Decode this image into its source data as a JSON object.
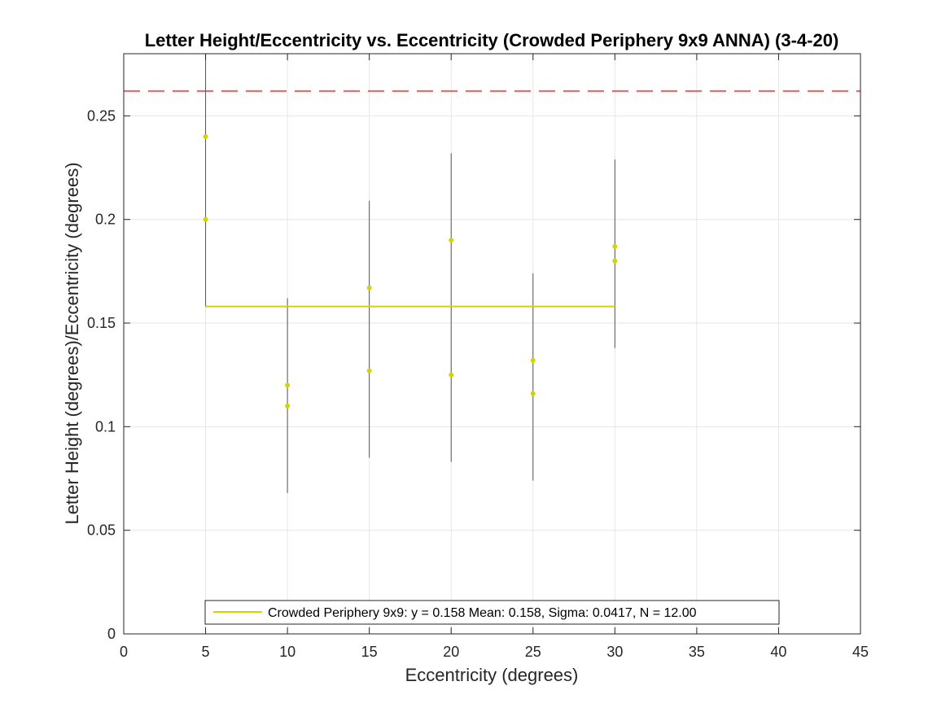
{
  "chart_data": {
    "type": "scatter",
    "title": "Letter Height/Eccentricity vs. Eccentricity (Crowded Periphery 9x9 ANNA) (3-4-20)",
    "xlabel": "Eccentricity (degrees)",
    "ylabel": "Letter Height (degrees)/Eccentricity (degrees)",
    "xlim": [
      0,
      45
    ],
    "ylim": [
      0,
      0.28
    ],
    "xticks": [
      0,
      5,
      10,
      15,
      20,
      25,
      30,
      35,
      40,
      45
    ],
    "xtick_labels": [
      "0",
      "5",
      "10",
      "15",
      "20",
      "25",
      "30",
      "35",
      "40",
      "45"
    ],
    "yticks": [
      0,
      0.05,
      0.1,
      0.15,
      0.2,
      0.25
    ],
    "ytick_labels": [
      "0",
      "0.05",
      "0.1",
      "0.15",
      "0.2",
      "0.25"
    ],
    "grid": true,
    "legend_position": "bottom-center",
    "colors": {
      "points": "#d4d400",
      "fit_line": "#d4d400",
      "error_bars": "#555555",
      "reference_line": "#ff5a5a",
      "grid": "#e6e6e6",
      "axes": "#262626"
    },
    "series": [
      {
        "name": "Crowded Periphery 9x9: y = 0.158 Mean: 0.158, Sigma: 0.0417, N = 12.00",
        "points": [
          {
            "x": 5,
            "y": 0.24
          },
          {
            "x": 5,
            "y": 0.2
          },
          {
            "x": 10,
            "y": 0.12
          },
          {
            "x": 10,
            "y": 0.11
          },
          {
            "x": 15,
            "y": 0.167
          },
          {
            "x": 15,
            "y": 0.127
          },
          {
            "x": 20,
            "y": 0.19
          },
          {
            "x": 20,
            "y": 0.125
          },
          {
            "x": 25,
            "y": 0.132
          },
          {
            "x": 25,
            "y": 0.116
          },
          {
            "x": 30,
            "y": 0.187
          },
          {
            "x": 30,
            "y": 0.18
          }
        ],
        "error_bars": [
          {
            "x": 5,
            "low": 0.158,
            "high": 0.28
          },
          {
            "x": 10,
            "low": 0.068,
            "high": 0.162
          },
          {
            "x": 15,
            "low": 0.085,
            "high": 0.209
          },
          {
            "x": 20,
            "low": 0.083,
            "high": 0.232
          },
          {
            "x": 25,
            "low": 0.074,
            "high": 0.174
          },
          {
            "x": 30,
            "low": 0.138,
            "high": 0.229
          }
        ],
        "fit": {
          "x_start": 5,
          "x_end": 30,
          "y": 0.158
        }
      }
    ],
    "reference_line": {
      "y": 0.262,
      "style": "dashed"
    }
  }
}
